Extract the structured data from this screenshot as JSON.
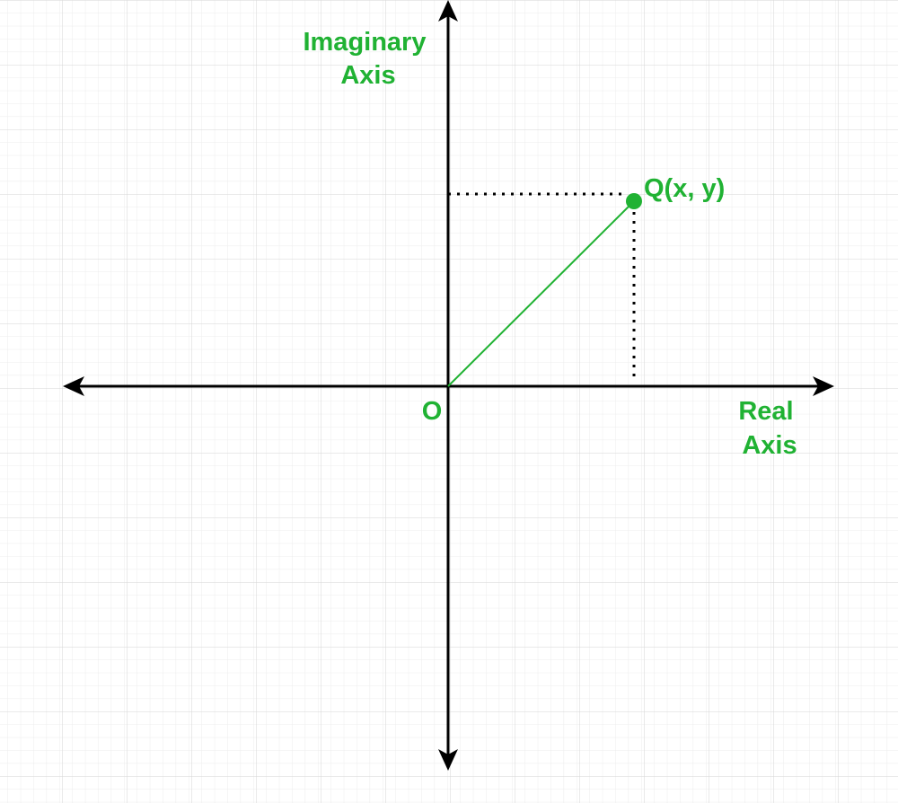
{
  "colors": {
    "accent": "#20b233",
    "axis": "#000000",
    "grid_minor": "#ececec",
    "grid_major": "#d6d6d6",
    "background": "#ffffff"
  },
  "labels": {
    "imaginary_axis_line1": "Imaginary",
    "imaginary_axis_line2": "Axis",
    "real_axis_line1": "Real",
    "real_axis_line2": "Axis",
    "origin": "O",
    "point": "Q(x, y)"
  }
}
